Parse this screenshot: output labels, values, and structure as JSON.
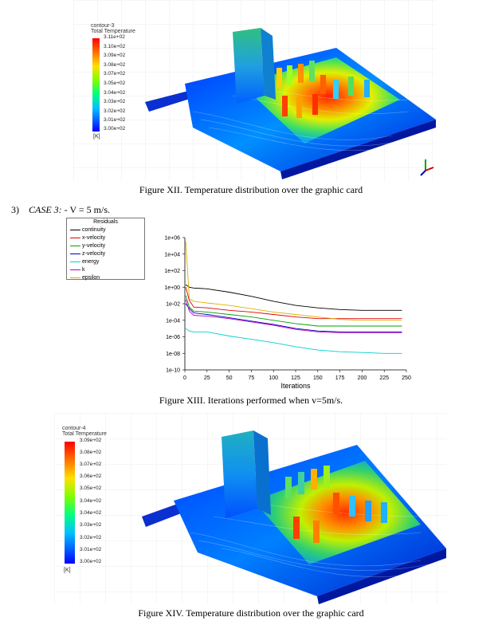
{
  "figure12": {
    "contour_name": "contour-3",
    "quantity": "Total Temperature",
    "levels": [
      "3.11e+02",
      "3.10e+02",
      "3.09e+02",
      "3.08e+02",
      "3.07e+02",
      "3.05e+02",
      "3.04e+02",
      "3.03e+02",
      "3.02e+02",
      "3.01e+02",
      "3.00e+02"
    ],
    "unit": "[K]",
    "caption": "Figure XII. Temperature distribution over the graphic card"
  },
  "case3": {
    "prefix": "3)",
    "label": "CASE 3:",
    "text": " - V = 5 m/s."
  },
  "figure13": {
    "caption": "Figure XIII. Iterations performed when v=5m/s.",
    "chart_data": {
      "type": "line",
      "title": "",
      "xlabel": "Iterations",
      "ylabel": "",
      "xlim": [
        0,
        250
      ],
      "ylim_log10": [
        -10,
        6
      ],
      "yscale": "log",
      "x_ticks": [
        "0",
        "25",
        "50",
        "75",
        "100",
        "125",
        "150",
        "175",
        "200",
        "225",
        "250"
      ],
      "y_ticks": [
        "1e+06",
        "1e+04",
        "1e+02",
        "1e+00",
        "1e-02",
        "1e-04",
        "1e-06",
        "1e-08",
        "1e-10"
      ],
      "legend_title": "Residuals",
      "legend_placement": "top-left (outside plot)",
      "x": [
        1,
        5,
        10,
        25,
        50,
        75,
        100,
        125,
        150,
        175,
        200,
        225,
        245
      ],
      "series": [
        {
          "name": "continuity",
          "color": "#000000",
          "log10": [
            0.3,
            0.0,
            -0.1,
            -0.2,
            -0.6,
            -1.1,
            -1.7,
            -2.2,
            -2.5,
            -2.7,
            -2.8,
            -2.8,
            -2.8
          ]
        },
        {
          "name": "x-velocity",
          "color": "#e00000",
          "log10": [
            0.0,
            -1.6,
            -2.4,
            -2.5,
            -2.8,
            -3.0,
            -3.3,
            -3.6,
            -3.8,
            -3.8,
            -3.8,
            -3.8,
            -3.8
          ]
        },
        {
          "name": "y-velocity",
          "color": "#00a000",
          "log10": [
            -1.0,
            -2.4,
            -2.9,
            -3.0,
            -3.3,
            -3.6,
            -4.0,
            -4.4,
            -4.7,
            -4.7,
            -4.7,
            -4.7,
            -4.7
          ]
        },
        {
          "name": "z-velocity",
          "color": "#0000c0",
          "log10": [
            -2.0,
            -2.6,
            -3.1,
            -3.3,
            -3.7,
            -4.1,
            -4.5,
            -5.0,
            -5.3,
            -5.4,
            -5.4,
            -5.4,
            -5.4
          ]
        },
        {
          "name": "energy",
          "color": "#00d0d0",
          "log10": [
            -5.0,
            -5.3,
            -5.4,
            -5.4,
            -5.9,
            -6.3,
            -6.7,
            -7.2,
            -7.6,
            -7.8,
            -7.9,
            -8.0,
            -8.0
          ]
        },
        {
          "name": "k",
          "color": "#c000c0",
          "log10": [
            -1.5,
            -2.9,
            -3.4,
            -3.5,
            -3.8,
            -4.2,
            -4.6,
            -5.1,
            -5.4,
            -5.5,
            -5.5,
            -5.5,
            -5.5
          ]
        },
        {
          "name": "epsilon",
          "color": "#e0b000",
          "log10": [
            5.5,
            -1.4,
            -1.7,
            -1.9,
            -2.2,
            -2.6,
            -3.0,
            -3.3,
            -3.6,
            -3.9,
            -4.0,
            -4.0,
            -4.0
          ]
        }
      ]
    }
  },
  "figure14": {
    "contour_name": "contour-4",
    "quantity": "Total Temperature",
    "levels": [
      "3.09e+02",
      "3.08e+02",
      "3.07e+02",
      "3.06e+02",
      "3.05e+02",
      "3.04e+02",
      "3.04e+02",
      "3.03e+02",
      "3.02e+02",
      "3.01e+02",
      "3.00e+02"
    ],
    "unit": "[K]",
    "caption": "Figure XIV. Temperature distribution over the graphic card"
  },
  "colors": {
    "colormap": [
      "#ff0000",
      "#ff6000",
      "#ffa000",
      "#ffe000",
      "#c0ff00",
      "#40ff40",
      "#00ffa0",
      "#00e0ff",
      "#00a0ff",
      "#0050ff",
      "#0000ff"
    ]
  }
}
